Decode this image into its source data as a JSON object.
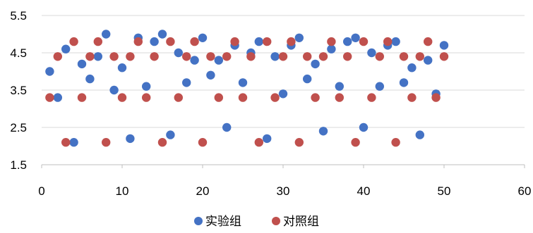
{
  "chart_data": {
    "type": "scatter",
    "title": "",
    "xlabel": "",
    "ylabel": "",
    "xlim": [
      0,
      60
    ],
    "ylim": [
      1.5,
      5.5
    ],
    "x_ticks": [
      0,
      10,
      20,
      30,
      40,
      50,
      60
    ],
    "y_ticks": [
      1.5,
      2.5,
      3.5,
      4.5,
      5.5
    ],
    "x_tick_labels": [
      "0",
      "10",
      "20",
      "30",
      "40",
      "50",
      "60"
    ],
    "y_tick_labels": [
      "1.5",
      "2.5",
      "3.5",
      "4.5",
      "5.5"
    ],
    "grid": "horizontal",
    "legend_position": "bottom",
    "series": [
      {
        "name": "实验组",
        "color": "#4472C4",
        "x": [
          1,
          2,
          3,
          4,
          5,
          6,
          7,
          8,
          9,
          10,
          11,
          12,
          13,
          14,
          15,
          16,
          17,
          18,
          19,
          20,
          21,
          22,
          23,
          24,
          25,
          26,
          27,
          28,
          29,
          30,
          31,
          32,
          33,
          34,
          35,
          36,
          37,
          38,
          39,
          40,
          41,
          42,
          43,
          44,
          45,
          46,
          47,
          48,
          49,
          50
        ],
        "y": [
          4.0,
          3.3,
          4.6,
          2.1,
          4.2,
          3.8,
          4.4,
          5.0,
          3.5,
          4.1,
          2.2,
          4.9,
          3.6,
          4.8,
          5.0,
          2.3,
          4.5,
          3.7,
          4.3,
          4.9,
          3.9,
          4.3,
          2.5,
          4.7,
          3.7,
          4.5,
          4.8,
          2.2,
          4.4,
          3.4,
          4.7,
          4.9,
          3.8,
          4.2,
          2.4,
          4.6,
          3.6,
          4.8,
          4.9,
          2.5,
          4.5,
          3.6,
          4.7,
          4.8,
          3.7,
          4.1,
          2.3,
          4.3,
          3.4,
          4.7
        ]
      },
      {
        "name": "对照组",
        "color": "#C0504D",
        "x": [
          1,
          2,
          3,
          4,
          5,
          6,
          7,
          8,
          9,
          10,
          11,
          12,
          13,
          14,
          15,
          16,
          17,
          18,
          19,
          20,
          21,
          22,
          23,
          24,
          25,
          26,
          27,
          28,
          29,
          30,
          31,
          32,
          33,
          34,
          35,
          36,
          37,
          38,
          39,
          40,
          41,
          42,
          43,
          44,
          45,
          46,
          47,
          48,
          49,
          50
        ],
        "y": [
          3.3,
          4.4,
          2.1,
          4.8,
          3.3,
          4.4,
          4.8,
          2.1,
          4.4,
          3.3,
          4.4,
          4.8,
          3.3,
          4.4,
          2.1,
          4.8,
          3.3,
          4.4,
          4.8,
          2.1,
          4.4,
          3.3,
          4.4,
          4.8,
          3.3,
          4.4,
          2.1,
          4.8,
          3.3,
          4.4,
          4.8,
          2.1,
          4.4,
          3.3,
          4.4,
          4.8,
          3.3,
          4.4,
          2.1,
          4.8,
          3.3,
          4.4,
          4.8,
          2.1,
          4.4,
          3.3,
          4.4,
          4.8,
          3.3,
          4.4
        ]
      }
    ]
  }
}
